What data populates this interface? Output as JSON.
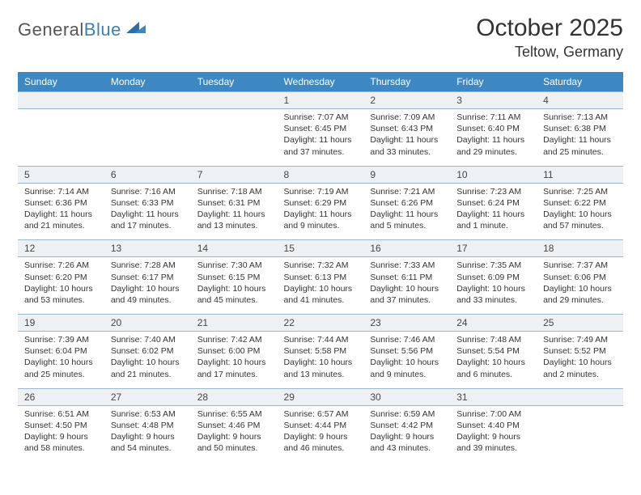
{
  "logo": {
    "general": "General",
    "blue": "Blue"
  },
  "title": "October 2025",
  "location": "Teltow, Germany",
  "headers": [
    "Sunday",
    "Monday",
    "Tuesday",
    "Wednesday",
    "Thursday",
    "Friday",
    "Saturday"
  ],
  "colors": {
    "header_bg": "#3d87c2",
    "header_text": "#ffffff",
    "daynum_bg": "#eef1f3",
    "border": "#9db7cc",
    "text": "#333333",
    "logo_gray": "#6a6a6a",
    "logo_blue": "#3d7fb8"
  },
  "weeks": [
    {
      "nums": [
        "",
        "",
        "",
        "1",
        "2",
        "3",
        "4"
      ],
      "days": [
        null,
        null,
        null,
        {
          "sr": "Sunrise: 7:07 AM",
          "ss": "Sunset: 6:45 PM",
          "dl": "Daylight: 11 hours and 37 minutes."
        },
        {
          "sr": "Sunrise: 7:09 AM",
          "ss": "Sunset: 6:43 PM",
          "dl": "Daylight: 11 hours and 33 minutes."
        },
        {
          "sr": "Sunrise: 7:11 AM",
          "ss": "Sunset: 6:40 PM",
          "dl": "Daylight: 11 hours and 29 minutes."
        },
        {
          "sr": "Sunrise: 7:13 AM",
          "ss": "Sunset: 6:38 PM",
          "dl": "Daylight: 11 hours and 25 minutes."
        }
      ]
    },
    {
      "nums": [
        "5",
        "6",
        "7",
        "8",
        "9",
        "10",
        "11"
      ],
      "days": [
        {
          "sr": "Sunrise: 7:14 AM",
          "ss": "Sunset: 6:36 PM",
          "dl": "Daylight: 11 hours and 21 minutes."
        },
        {
          "sr": "Sunrise: 7:16 AM",
          "ss": "Sunset: 6:33 PM",
          "dl": "Daylight: 11 hours and 17 minutes."
        },
        {
          "sr": "Sunrise: 7:18 AM",
          "ss": "Sunset: 6:31 PM",
          "dl": "Daylight: 11 hours and 13 minutes."
        },
        {
          "sr": "Sunrise: 7:19 AM",
          "ss": "Sunset: 6:29 PM",
          "dl": "Daylight: 11 hours and 9 minutes."
        },
        {
          "sr": "Sunrise: 7:21 AM",
          "ss": "Sunset: 6:26 PM",
          "dl": "Daylight: 11 hours and 5 minutes."
        },
        {
          "sr": "Sunrise: 7:23 AM",
          "ss": "Sunset: 6:24 PM",
          "dl": "Daylight: 11 hours and 1 minute."
        },
        {
          "sr": "Sunrise: 7:25 AM",
          "ss": "Sunset: 6:22 PM",
          "dl": "Daylight: 10 hours and 57 minutes."
        }
      ]
    },
    {
      "nums": [
        "12",
        "13",
        "14",
        "15",
        "16",
        "17",
        "18"
      ],
      "days": [
        {
          "sr": "Sunrise: 7:26 AM",
          "ss": "Sunset: 6:20 PM",
          "dl": "Daylight: 10 hours and 53 minutes."
        },
        {
          "sr": "Sunrise: 7:28 AM",
          "ss": "Sunset: 6:17 PM",
          "dl": "Daylight: 10 hours and 49 minutes."
        },
        {
          "sr": "Sunrise: 7:30 AM",
          "ss": "Sunset: 6:15 PM",
          "dl": "Daylight: 10 hours and 45 minutes."
        },
        {
          "sr": "Sunrise: 7:32 AM",
          "ss": "Sunset: 6:13 PM",
          "dl": "Daylight: 10 hours and 41 minutes."
        },
        {
          "sr": "Sunrise: 7:33 AM",
          "ss": "Sunset: 6:11 PM",
          "dl": "Daylight: 10 hours and 37 minutes."
        },
        {
          "sr": "Sunrise: 7:35 AM",
          "ss": "Sunset: 6:09 PM",
          "dl": "Daylight: 10 hours and 33 minutes."
        },
        {
          "sr": "Sunrise: 7:37 AM",
          "ss": "Sunset: 6:06 PM",
          "dl": "Daylight: 10 hours and 29 minutes."
        }
      ]
    },
    {
      "nums": [
        "19",
        "20",
        "21",
        "22",
        "23",
        "24",
        "25"
      ],
      "days": [
        {
          "sr": "Sunrise: 7:39 AM",
          "ss": "Sunset: 6:04 PM",
          "dl": "Daylight: 10 hours and 25 minutes."
        },
        {
          "sr": "Sunrise: 7:40 AM",
          "ss": "Sunset: 6:02 PM",
          "dl": "Daylight: 10 hours and 21 minutes."
        },
        {
          "sr": "Sunrise: 7:42 AM",
          "ss": "Sunset: 6:00 PM",
          "dl": "Daylight: 10 hours and 17 minutes."
        },
        {
          "sr": "Sunrise: 7:44 AM",
          "ss": "Sunset: 5:58 PM",
          "dl": "Daylight: 10 hours and 13 minutes."
        },
        {
          "sr": "Sunrise: 7:46 AM",
          "ss": "Sunset: 5:56 PM",
          "dl": "Daylight: 10 hours and 9 minutes."
        },
        {
          "sr": "Sunrise: 7:48 AM",
          "ss": "Sunset: 5:54 PM",
          "dl": "Daylight: 10 hours and 6 minutes."
        },
        {
          "sr": "Sunrise: 7:49 AM",
          "ss": "Sunset: 5:52 PM",
          "dl": "Daylight: 10 hours and 2 minutes."
        }
      ]
    },
    {
      "nums": [
        "26",
        "27",
        "28",
        "29",
        "30",
        "31",
        ""
      ],
      "days": [
        {
          "sr": "Sunrise: 6:51 AM",
          "ss": "Sunset: 4:50 PM",
          "dl": "Daylight: 9 hours and 58 minutes."
        },
        {
          "sr": "Sunrise: 6:53 AM",
          "ss": "Sunset: 4:48 PM",
          "dl": "Daylight: 9 hours and 54 minutes."
        },
        {
          "sr": "Sunrise: 6:55 AM",
          "ss": "Sunset: 4:46 PM",
          "dl": "Daylight: 9 hours and 50 minutes."
        },
        {
          "sr": "Sunrise: 6:57 AM",
          "ss": "Sunset: 4:44 PM",
          "dl": "Daylight: 9 hours and 46 minutes."
        },
        {
          "sr": "Sunrise: 6:59 AM",
          "ss": "Sunset: 4:42 PM",
          "dl": "Daylight: 9 hours and 43 minutes."
        },
        {
          "sr": "Sunrise: 7:00 AM",
          "ss": "Sunset: 4:40 PM",
          "dl": "Daylight: 9 hours and 39 minutes."
        },
        null
      ]
    }
  ]
}
